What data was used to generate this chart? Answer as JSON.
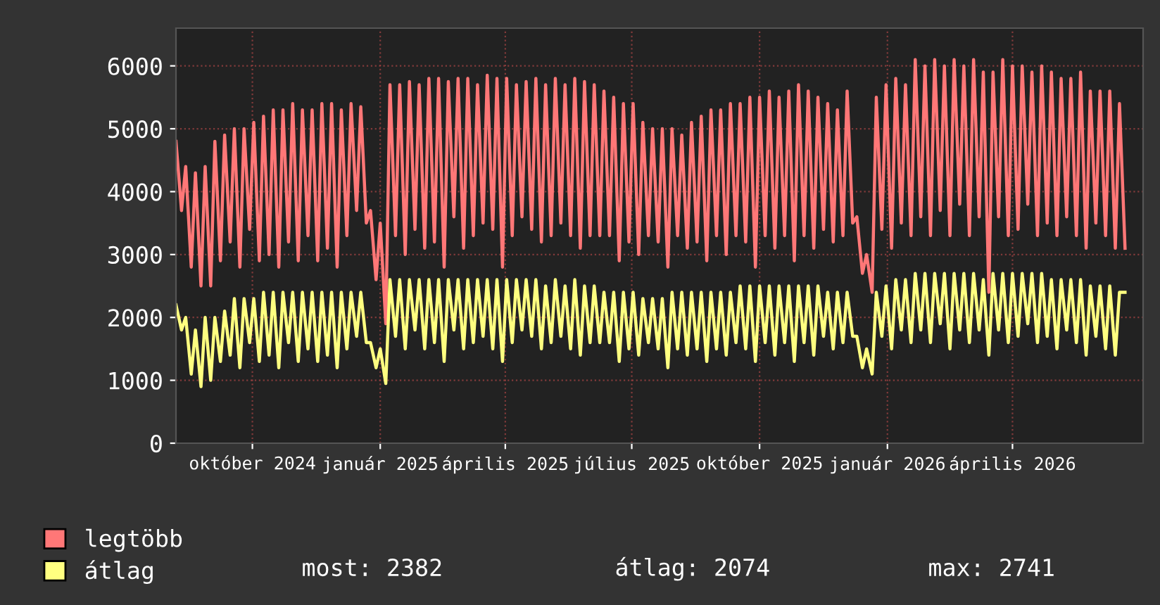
{
  "chart_data": {
    "type": "line",
    "x": [
      "2024-08-07",
      "2024-08-11",
      "2024-08-14",
      "2024-08-18",
      "2024-08-21",
      "2024-08-25",
      "2024-08-28",
      "2024-09-01",
      "2024-09-04",
      "2024-09-08",
      "2024-09-11",
      "2024-09-15",
      "2024-09-18",
      "2024-09-22",
      "2024-09-25",
      "2024-09-29",
      "2024-10-02",
      "2024-10-06",
      "2024-10-09",
      "2024-10-13",
      "2024-10-16",
      "2024-10-20",
      "2024-10-23",
      "2024-10-27",
      "2024-10-30",
      "2024-11-03",
      "2024-11-06",
      "2024-11-10",
      "2024-11-13",
      "2024-11-17",
      "2024-11-20",
      "2024-11-24",
      "2024-11-27",
      "2024-12-01",
      "2024-12-04",
      "2024-12-08",
      "2024-12-11",
      "2024-12-15",
      "2024-12-18",
      "2024-12-22",
      "2024-12-25",
      "2024-12-29",
      "2025-01-01",
      "2025-01-05",
      "2025-01-08",
      "2025-01-12",
      "2025-01-15",
      "2025-01-19",
      "2025-01-22",
      "2025-01-26",
      "2025-01-29",
      "2025-02-02",
      "2025-02-05",
      "2025-02-09",
      "2025-02-12",
      "2025-02-16",
      "2025-02-19",
      "2025-02-23",
      "2025-02-26",
      "2025-03-02",
      "2025-03-05",
      "2025-03-09",
      "2025-03-12",
      "2025-03-16",
      "2025-03-19",
      "2025-03-23",
      "2025-03-26",
      "2025-03-30",
      "2025-04-02",
      "2025-04-06",
      "2025-04-09",
      "2025-04-13",
      "2025-04-16",
      "2025-04-20",
      "2025-04-23",
      "2025-04-27",
      "2025-04-30",
      "2025-05-04",
      "2025-05-07",
      "2025-05-11",
      "2025-05-14",
      "2025-05-18",
      "2025-05-21",
      "2025-05-25",
      "2025-05-28",
      "2025-06-01",
      "2025-06-04",
      "2025-06-08",
      "2025-06-11",
      "2025-06-15",
      "2025-06-18",
      "2025-06-22",
      "2025-06-25",
      "2025-06-29",
      "2025-07-02",
      "2025-07-06",
      "2025-07-09",
      "2025-07-13",
      "2025-07-16",
      "2025-07-20",
      "2025-07-23",
      "2025-07-27",
      "2025-07-30",
      "2025-08-03",
      "2025-08-06",
      "2025-08-10",
      "2025-08-13",
      "2025-08-17",
      "2025-08-20",
      "2025-08-24",
      "2025-08-27",
      "2025-08-31",
      "2025-09-03",
      "2025-09-07",
      "2025-09-10",
      "2025-09-14",
      "2025-09-17",
      "2025-09-21",
      "2025-09-24",
      "2025-09-28",
      "2025-10-01",
      "2025-10-05",
      "2025-10-08",
      "2025-10-12",
      "2025-10-15",
      "2025-10-19",
      "2025-10-22",
      "2025-10-26",
      "2025-10-29",
      "2025-11-02",
      "2025-11-05",
      "2025-11-09",
      "2025-11-12",
      "2025-11-16",
      "2025-11-19",
      "2025-11-23",
      "2025-11-26",
      "2025-11-30",
      "2025-12-03",
      "2025-12-07",
      "2025-12-10",
      "2025-12-14",
      "2025-12-17",
      "2025-12-21",
      "2025-12-24",
      "2025-12-28",
      "2025-12-31",
      "2026-01-04",
      "2026-01-07",
      "2026-01-11",
      "2026-01-14",
      "2026-01-18",
      "2026-01-21",
      "2026-01-25",
      "2026-01-28",
      "2026-02-01",
      "2026-02-04",
      "2026-02-08",
      "2026-02-11",
      "2026-02-15",
      "2026-02-18",
      "2026-02-22",
      "2026-02-25",
      "2026-03-01",
      "2026-03-04",
      "2026-03-08",
      "2026-03-11",
      "2026-03-15",
      "2026-03-18",
      "2026-03-22",
      "2026-03-25",
      "2026-03-29",
      "2026-04-01",
      "2026-04-05",
      "2026-04-08",
      "2026-04-12",
      "2026-04-15",
      "2026-04-19",
      "2026-04-22",
      "2026-04-26",
      "2026-04-29",
      "2026-05-03",
      "2026-05-06",
      "2026-05-10",
      "2026-05-13",
      "2026-05-17",
      "2026-05-20",
      "2026-05-24",
      "2026-05-27",
      "2026-05-31",
      "2026-06-03",
      "2026-06-07",
      "2026-06-10",
      "2026-06-14",
      "2026-06-17",
      "2026-06-21"
    ],
    "series": [
      {
        "name": "legtöbb",
        "color": "#ff7777",
        "values": [
          4800,
          3700,
          4400,
          2800,
          4300,
          2500,
          4400,
          2500,
          4800,
          2900,
          4900,
          3200,
          5000,
          2800,
          5000,
          3400,
          5100,
          2900,
          5200,
          3000,
          5300,
          2800,
          5300,
          3200,
          5400,
          2900,
          5300,
          3300,
          5300,
          2900,
          5400,
          3100,
          5400,
          2800,
          5300,
          3300,
          5400,
          3700,
          5350,
          3500,
          3700,
          2600,
          3500,
          1900,
          5700,
          3300,
          5700,
          3000,
          5750,
          3400,
          5700,
          3100,
          5800,
          3200,
          5800,
          2800,
          5750,
          3600,
          5800,
          3100,
          5800,
          3300,
          5700,
          3500,
          5850,
          3400,
          5800,
          2800,
          5800,
          3300,
          5700,
          3600,
          5750,
          3400,
          5800,
          3200,
          5700,
          3300,
          5800,
          3500,
          5700,
          3300,
          5800,
          3100,
          5750,
          3300,
          5700,
          3300,
          5600,
          3300,
          5500,
          2900,
          5400,
          3200,
          5400,
          3000,
          5100,
          3300,
          5000,
          3200,
          5000,
          2800,
          5000,
          3300,
          4900,
          3100,
          5100,
          3200,
          5200,
          2900,
          5300,
          3300,
          5300,
          3000,
          5400,
          3300,
          5400,
          3200,
          5500,
          2800,
          5500,
          3300,
          5600,
          3100,
          5500,
          3300,
          5600,
          2900,
          5700,
          3300,
          5600,
          3100,
          5500,
          3400,
          5400,
          3200,
          5300,
          3300,
          5600,
          3500,
          3600,
          2700,
          3000,
          2400,
          5500,
          3400,
          5700,
          3100,
          5800,
          3500,
          5700,
          3300,
          6100,
          3600,
          6000,
          3300,
          6100,
          3700,
          6000,
          3300,
          6100,
          3800,
          6000,
          3300,
          6100,
          3600,
          5900,
          2400,
          5900,
          3600,
          6100,
          3300,
          6000,
          3400,
          6000,
          3800,
          5900,
          3300,
          6000,
          3500,
          5900,
          3300,
          5800,
          3600,
          5800,
          3300,
          5900,
          3100,
          5600,
          3500,
          5600,
          3300,
          5600,
          3100,
          5400,
          3100
        ]
      },
      {
        "name": "átlag",
        "color": "#ffff80",
        "values": [
          2200,
          1800,
          2000,
          1100,
          1800,
          900,
          2000,
          1000,
          2000,
          1300,
          2100,
          1400,
          2300,
          1200,
          2300,
          1600,
          2300,
          1300,
          2400,
          1400,
          2400,
          1200,
          2400,
          1600,
          2400,
          1300,
          2400,
          1500,
          2400,
          1300,
          2400,
          1400,
          2400,
          1200,
          2400,
          1500,
          2400,
          1700,
          2400,
          1600,
          1600,
          1200,
          1500,
          950,
          2600,
          1700,
          2600,
          1500,
          2600,
          1800,
          2600,
          1500,
          2600,
          1600,
          2600,
          1300,
          2600,
          1800,
          2600,
          1500,
          2600,
          1600,
          2600,
          1700,
          2600,
          1500,
          2600,
          1300,
          2600,
          1600,
          2600,
          1800,
          2600,
          1700,
          2600,
          1500,
          2500,
          1600,
          2600,
          1700,
          2500,
          1500,
          2600,
          1400,
          2500,
          1600,
          2500,
          1600,
          2400,
          1600,
          2400,
          1300,
          2400,
          1500,
          2400,
          1400,
          2300,
          1600,
          2300,
          1500,
          2300,
          1200,
          2400,
          1500,
          2400,
          1400,
          2400,
          1500,
          2400,
          1300,
          2400,
          1500,
          2400,
          1400,
          2400,
          1600,
          2500,
          1500,
          2500,
          1300,
          2500,
          1600,
          2500,
          1400,
          2500,
          1600,
          2500,
          1300,
          2500,
          1600,
          2500,
          1400,
          2500,
          1700,
          2400,
          1500,
          2400,
          1600,
          2400,
          1700,
          1700,
          1200,
          1500,
          1100,
          2400,
          1700,
          2500,
          1500,
          2600,
          1800,
          2600,
          1600,
          2700,
          1800,
          2700,
          1600,
          2700,
          1900,
          2700,
          1500,
          2700,
          1800,
          2700,
          1600,
          2700,
          1800,
          2600,
          1400,
          2700,
          1800,
          2700,
          1600,
          2700,
          1700,
          2700,
          1900,
          2700,
          1600,
          2700,
          1700,
          2600,
          1500,
          2600,
          1800,
          2600,
          1600,
          2600,
          1400,
          2500,
          1700,
          2500,
          1500,
          2500,
          1400,
          2400,
          2400
        ]
      }
    ],
    "xlim": [
      "2024-08-07",
      "2026-07-04"
    ],
    "xticks": [
      {
        "value": "2024-10-01",
        "label": "október 2024"
      },
      {
        "value": "2025-01-01",
        "label": "január 2025"
      },
      {
        "value": "2025-04-01",
        "label": "április 2025"
      },
      {
        "value": "2025-07-01",
        "label": "július 2025"
      },
      {
        "value": "2025-10-01",
        "label": "október 2025"
      },
      {
        "value": "2026-01-01",
        "label": "január 2026"
      },
      {
        "value": "2026-04-01",
        "label": "április 2026"
      }
    ],
    "ylim": [
      0,
      6600
    ],
    "yticks": [
      0,
      1000,
      2000,
      3000,
      4000,
      5000,
      6000
    ],
    "grid": true,
    "legend": "bottom left",
    "annotations": [
      "most: 2382",
      "átlag: 2074",
      "max: 2741"
    ]
  }
}
